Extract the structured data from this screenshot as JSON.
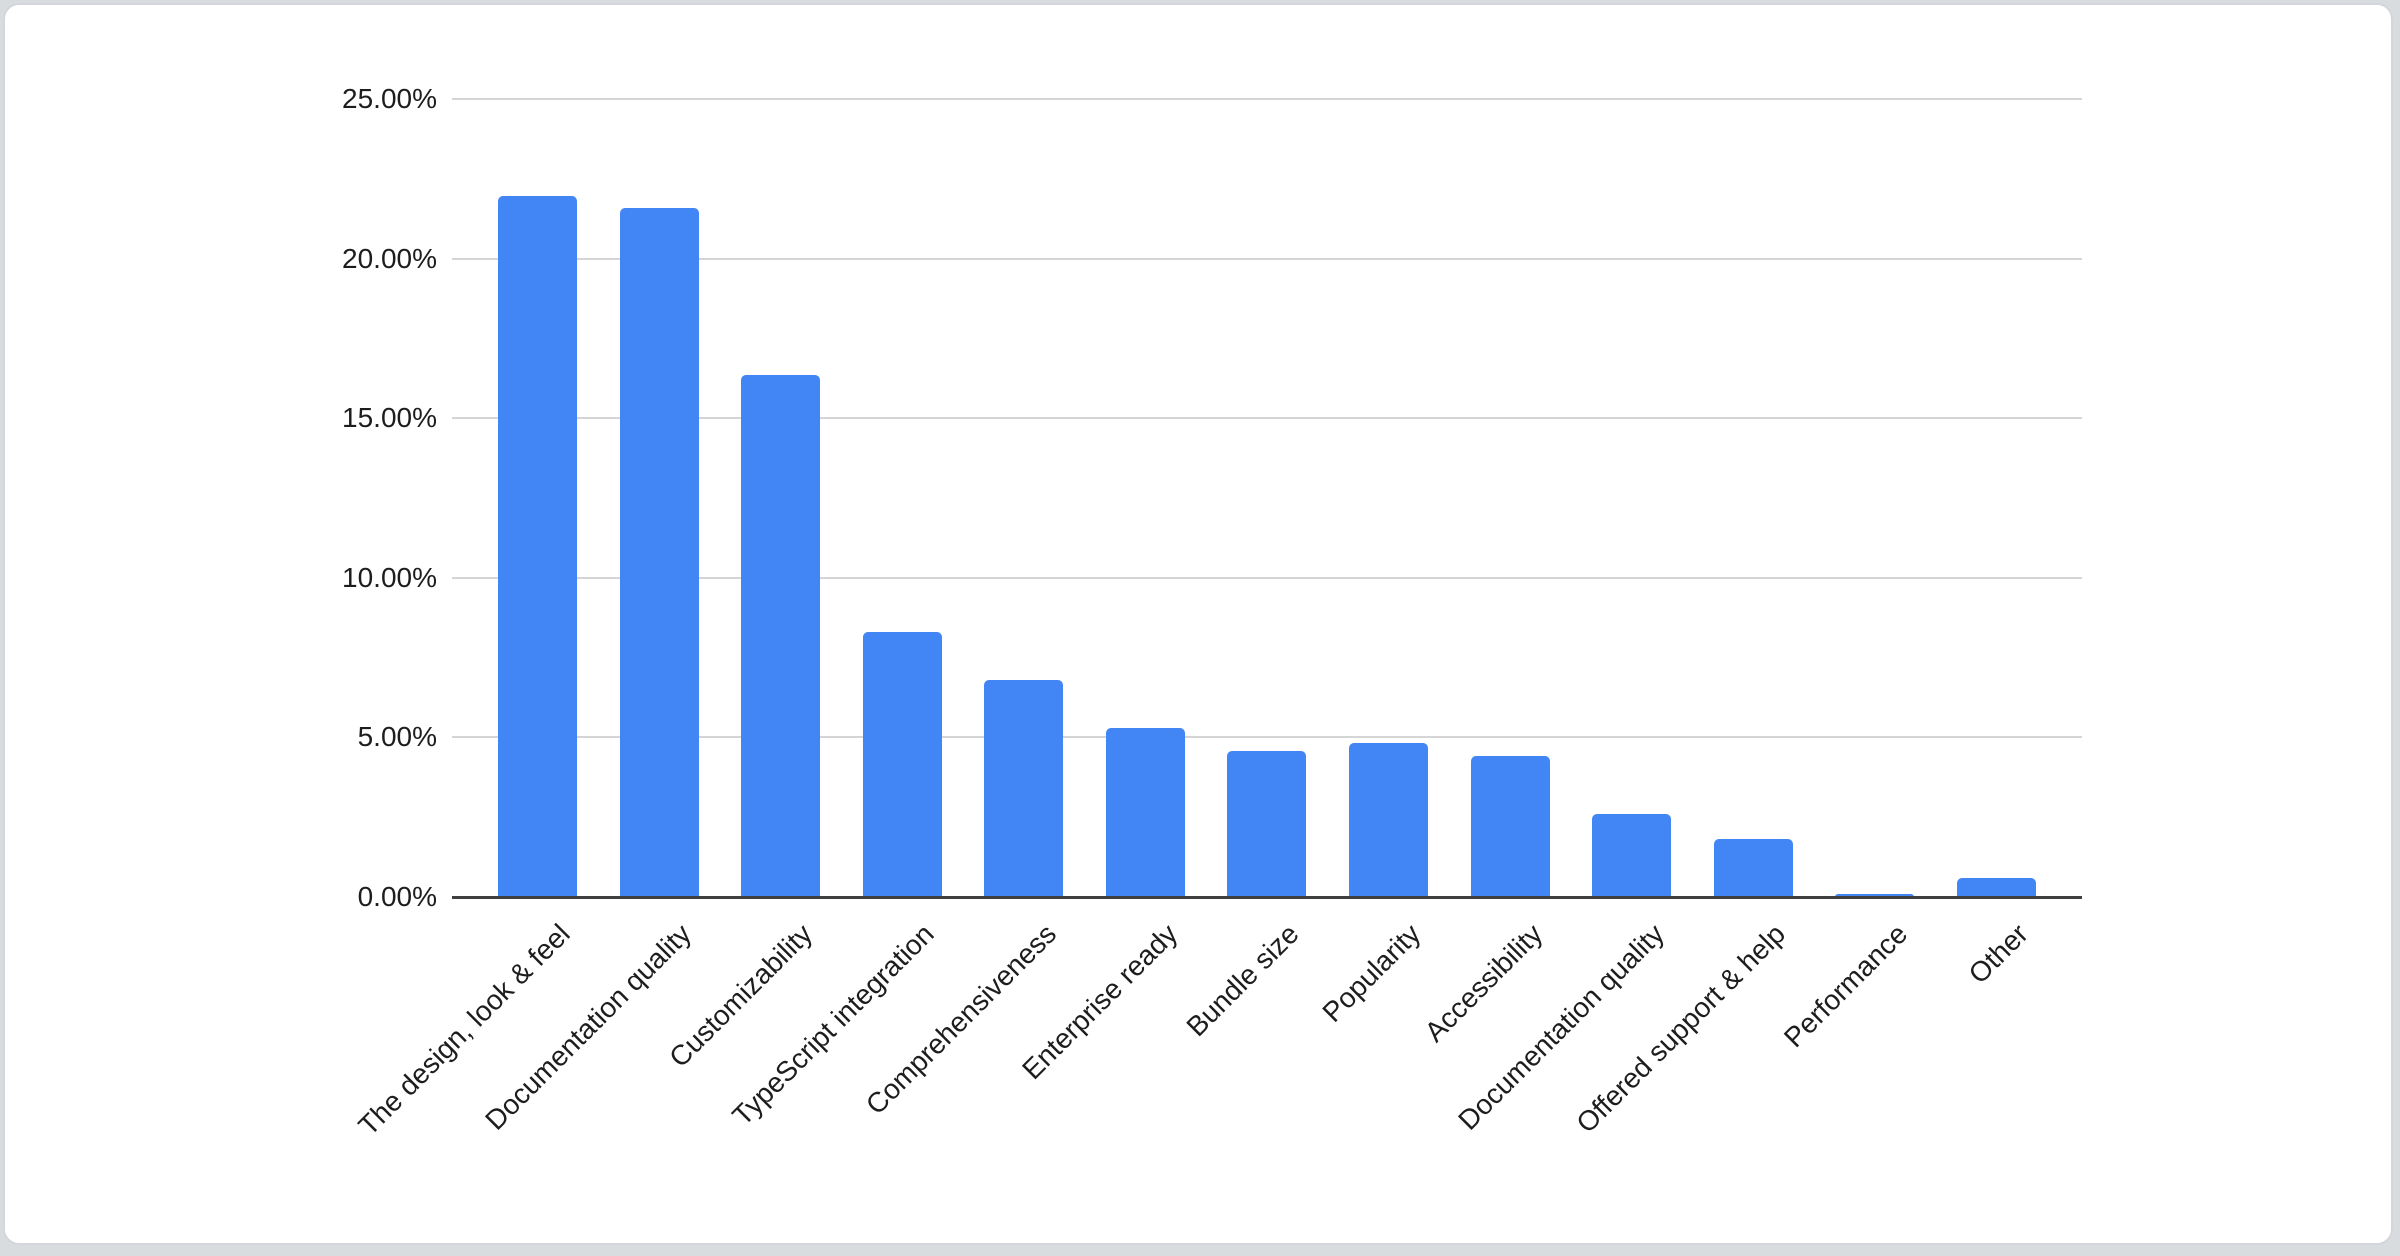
{
  "page": {
    "background_color": "#d9dcdf",
    "card_background": "#ffffff",
    "card_border_color": "#d3d6da"
  },
  "chart_data": {
    "type": "bar",
    "title": "",
    "xlabel": "",
    "ylabel": "",
    "legend": "none",
    "grid": true,
    "ylim": [
      0,
      25
    ],
    "x_label_rotation_deg": 45,
    "series_color": "#4285f4",
    "gridline_color": "#d5d5d5",
    "axis_line_color": "#3f3f3f",
    "label_color": "#1d1d1d",
    "y_tick_values": [
      0,
      5,
      10,
      15,
      20,
      25
    ],
    "y_tick_labels": [
      "0.00%",
      "5.00%",
      "10.00%",
      "15.00%",
      "20.00%",
      "25.00%"
    ],
    "categories": [
      "The design, look & feel",
      "Documentation quality",
      "Customizability",
      "TypeScript integration",
      "Comprehensiveness",
      "Enterprise ready",
      "Bundle size",
      "Popularity",
      "Accessibility",
      "Documentation quality",
      "Offered support & help",
      "Performance",
      "Other"
    ],
    "values": [
      21.95,
      21.58,
      16.34,
      8.31,
      6.81,
      5.3,
      4.58,
      4.83,
      4.42,
      2.6,
      1.82,
      0.1,
      0.6
    ]
  }
}
